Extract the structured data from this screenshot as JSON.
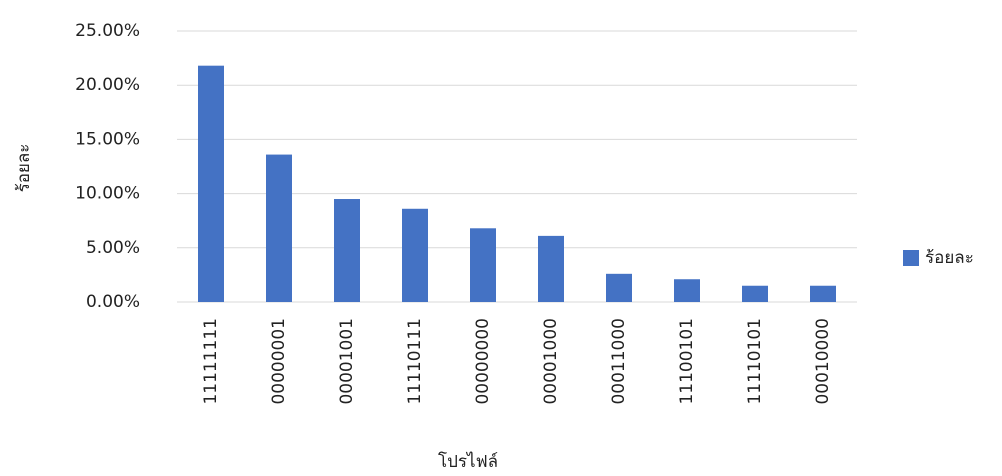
{
  "chart_data": {
    "type": "bar",
    "x_label": "โปรไฟล์",
    "y_label": "ร้อยละ",
    "categories": [
      "11111111",
      "00000001",
      "00001001",
      "11110111",
      "00000000",
      "00001000",
      "00011000",
      "11100101",
      "11110101",
      "00010000"
    ],
    "series": [
      {
        "name": "ร้อยละ",
        "color": "#4472c4",
        "values": [
          21.8,
          13.6,
          9.5,
          8.6,
          6.8,
          6.1,
          2.6,
          2.1,
          1.5,
          1.5
        ]
      }
    ],
    "ylim": [
      0,
      25
    ],
    "yticks": [
      {
        "value": 0,
        "label": "0.00%"
      },
      {
        "value": 5,
        "label": "5.00%"
      },
      {
        "value": 10,
        "label": "10.00%"
      },
      {
        "value": 15,
        "label": "15.00%"
      },
      {
        "value": 20,
        "label": "20.00%"
      },
      {
        "value": 25,
        "label": "25.00%"
      }
    ],
    "grid": true,
    "legend": "right"
  }
}
